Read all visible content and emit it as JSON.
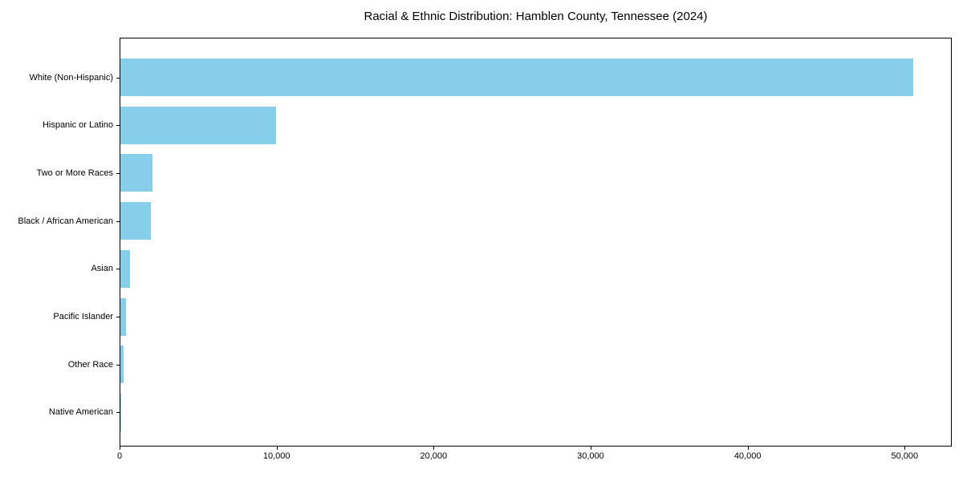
{
  "chart_data": {
    "type": "bar",
    "orientation": "horizontal",
    "title": "Racial & Ethnic Distribution: Hamblen County, Tennessee (2024)",
    "categories": [
      "White (Non-Hispanic)",
      "Hispanic or Latino",
      "Two or More Races",
      "Black / African American",
      "Asian",
      "Pacific Islander",
      "Other Race",
      "Native American"
    ],
    "values": [
      50500,
      9900,
      2050,
      1950,
      620,
      360,
      200,
      30
    ],
    "xlabel": "",
    "ylabel": "",
    "xlim": [
      0,
      53000
    ],
    "xticks": {
      "values": [
        0,
        10000,
        20000,
        30000,
        40000,
        50000
      ],
      "labels": [
        "0",
        "10,000",
        "20,000",
        "30,000",
        "40,000",
        "50,000"
      ]
    },
    "bar_color": "#87CEEB",
    "text_color": "#000000",
    "background_color": "#ffffff",
    "grid": false,
    "legend_position": "none"
  }
}
